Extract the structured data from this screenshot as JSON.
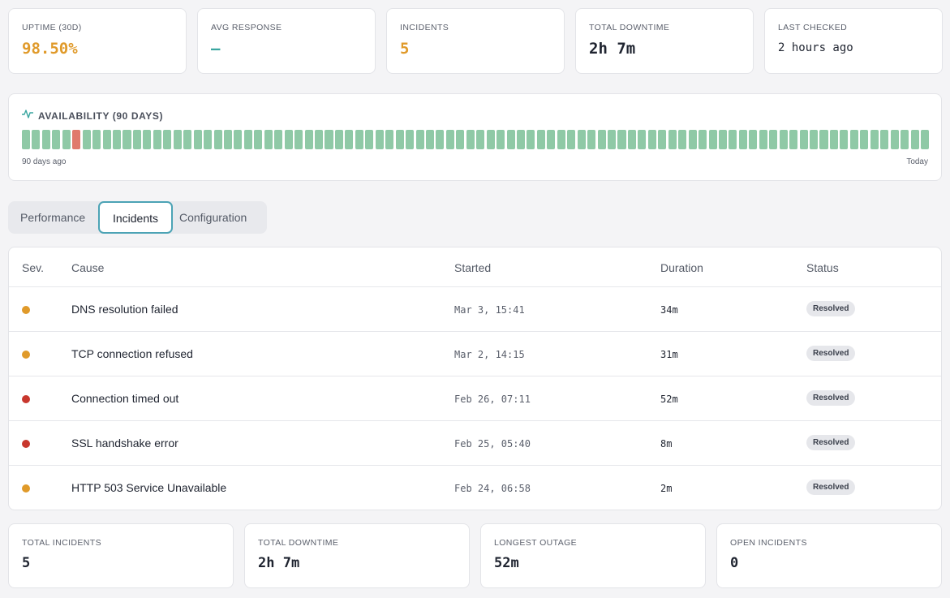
{
  "top_stats": [
    {
      "label": "UPTIME (30D)",
      "value": "98.50%",
      "color": "#e09a2a"
    },
    {
      "label": "AVG RESPONSE",
      "value": "—",
      "color": "#3aa6a0"
    },
    {
      "label": "INCIDENTS",
      "value": "5",
      "color": "#e09a2a"
    },
    {
      "label": "TOTAL DOWNTIME",
      "value": "2h 7m",
      "color": "#1f2430"
    },
    {
      "label": "LAST CHECKED",
      "value": "2 hours ago",
      "color": "#1f2430"
    }
  ],
  "availability": {
    "title": "AVAILABILITY (90 DAYS)",
    "icon": "activity-icon",
    "start_label": "90 days ago",
    "end_label": "Today",
    "days": [
      1,
      1,
      1,
      1,
      1,
      0,
      1,
      1,
      1,
      1,
      1,
      1,
      1,
      1,
      1,
      1,
      1,
      1,
      1,
      1,
      1,
      1,
      1,
      1,
      1,
      1,
      1,
      1,
      1,
      1,
      1,
      1,
      1,
      1,
      1,
      1,
      1,
      1,
      1,
      1,
      1,
      1,
      1,
      1,
      1,
      1,
      1,
      1,
      1,
      1,
      1,
      1,
      1,
      1,
      1,
      1,
      1,
      1,
      1,
      1,
      1,
      1,
      1,
      1,
      1,
      1,
      1,
      1,
      1,
      1,
      1,
      1,
      1,
      1,
      1,
      1,
      1,
      1,
      1,
      1,
      1,
      1,
      1,
      1,
      1,
      1,
      1,
      1,
      1,
      1
    ],
    "up_color": "#8fc9a6",
    "down_color": "#e07a6c"
  },
  "tabs": [
    "Performance",
    "Incidents",
    "Configuration"
  ],
  "active_tab": "Incidents",
  "table": {
    "headers": {
      "sev": "Sev.",
      "cause": "Cause",
      "started": "Started",
      "duration": "Duration",
      "status": "Status"
    },
    "rows": [
      {
        "severity": "warning",
        "color": "#e09a2a",
        "cause": "DNS resolution failed",
        "started": "Mar 3, 15:41",
        "duration": "34m",
        "status": "Resolved"
      },
      {
        "severity": "warning",
        "color": "#e09a2a",
        "cause": "TCP connection refused",
        "started": "Mar 2, 14:15",
        "duration": "31m",
        "status": "Resolved"
      },
      {
        "severity": "critical",
        "color": "#c8372d",
        "cause": "Connection timed out",
        "started": "Feb 26, 07:11",
        "duration": "52m",
        "status": "Resolved"
      },
      {
        "severity": "critical",
        "color": "#c8372d",
        "cause": "SSL handshake error",
        "started": "Feb 25, 05:40",
        "duration": "8m",
        "status": "Resolved"
      },
      {
        "severity": "warning",
        "color": "#e09a2a",
        "cause": "HTTP 503 Service Unavailable",
        "started": "Feb 24, 06:58",
        "duration": "2m",
        "status": "Resolved"
      }
    ]
  },
  "bottom_stats": [
    {
      "label": "TOTAL INCIDENTS",
      "value": "5"
    },
    {
      "label": "TOTAL DOWNTIME",
      "value": "2h 7m"
    },
    {
      "label": "LONGEST OUTAGE",
      "value": "52m"
    },
    {
      "label": "OPEN INCIDENTS",
      "value": "0"
    }
  ]
}
